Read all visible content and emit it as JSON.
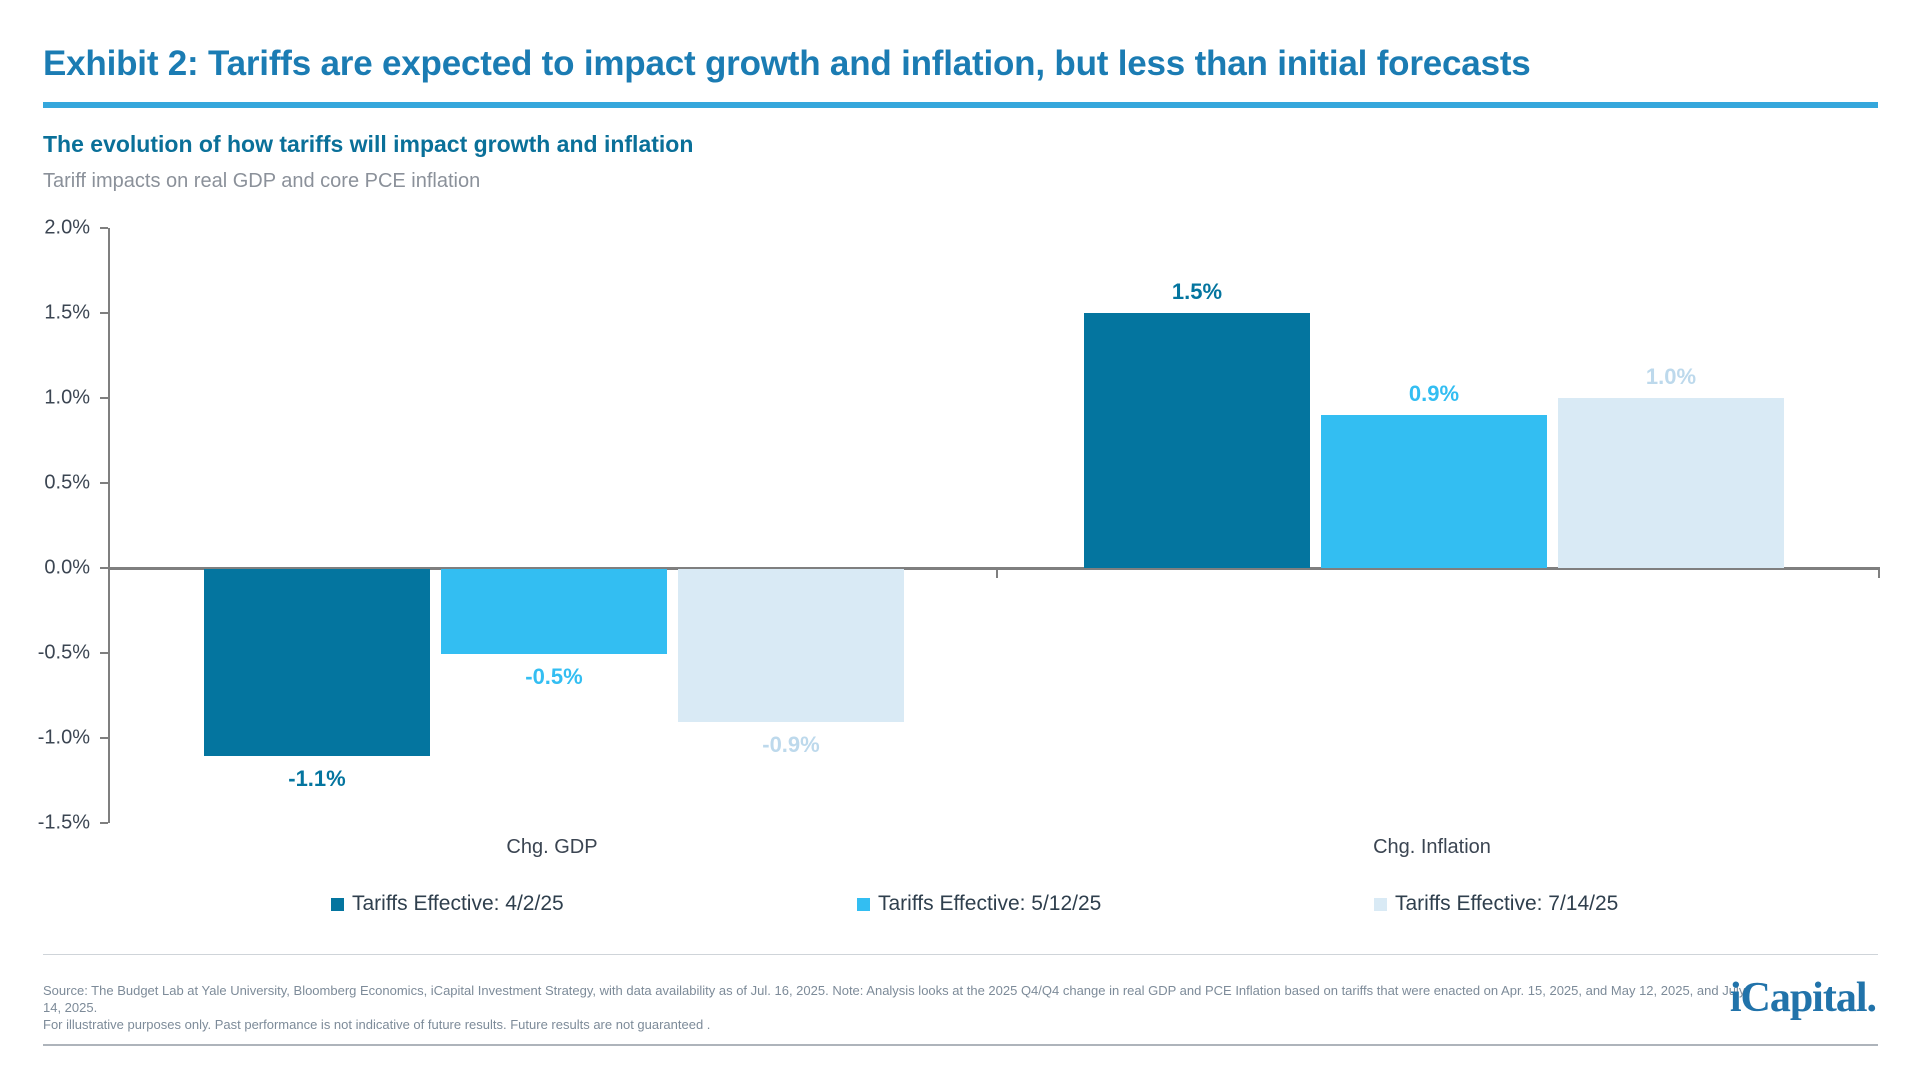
{
  "header": {
    "title": "Exhibit 2: Tariffs are expected to impact growth and inflation, but less than initial forecasts",
    "subtitle": "The evolution of how tariffs will impact growth and inflation",
    "caption": "Tariff impacts on real GDP and core PCE inflation"
  },
  "colors": {
    "title": "#1B7CB3",
    "title_rule": "#35A7DC",
    "subtitle": "#0A7099",
    "caption": "#8B919A",
    "axis": "#7F7F7F",
    "axis_labels": "#3B4552",
    "legend_text": "#2F3F4D",
    "footer_text": "#7D8B99",
    "logo": "#2173AA"
  },
  "chart_data": {
    "type": "bar",
    "title": "The evolution of how tariffs will impact growth and inflation",
    "subtitle": "Tariff impacts on real GDP and core PCE inflation",
    "categories": [
      "Chg. GDP",
      "Chg. Inflation"
    ],
    "series": [
      {
        "name": "Tariffs Effective: 4/2/25",
        "color": "#04759F",
        "label_color": "#04759F",
        "values": [
          -1.1,
          1.5
        ],
        "data_labels": [
          "-1.1%",
          "1.5%"
        ]
      },
      {
        "name": "Tariffs Effective: 5/12/25",
        "color": "#33BEF2",
        "label_color": "#33BEF2",
        "values": [
          -0.5,
          0.9
        ],
        "data_labels": [
          "-0.5%",
          "0.9%"
        ]
      },
      {
        "name": "Tariffs Effective: 7/14/25",
        "color": "#D9EAF5",
        "label_color": "#BDD9EC",
        "values": [
          -0.9,
          1.0
        ],
        "data_labels": [
          "-0.9%",
          "1.0%"
        ]
      }
    ],
    "ylim": [
      -1.5,
      2.0
    ],
    "yticks": [
      {
        "label": "2.0%",
        "value": 2.0
      },
      {
        "label": "1.5%",
        "value": 1.5
      },
      {
        "label": "1.0%",
        "value": 1.0
      },
      {
        "label": "0.5%",
        "value": 0.5
      },
      {
        "label": "0.0%",
        "value": 0.0
      },
      {
        "label": "-0.5%",
        "value": -0.5
      },
      {
        "label": "-1.0%",
        "value": -1.0
      },
      {
        "label": "-1.5%",
        "value": -1.5
      }
    ],
    "grid": false,
    "legend_position": "bottom"
  },
  "footer": {
    "source_line1": "Source: The Budget Lab at Yale University, Bloomberg Economics, iCapital Investment Strategy, with data availability as of Jul. 16, 2025. Note: Analysis looks at the 2025 Q4/Q4 change in real GDP and PCE Inflation based on tariffs that were enacted on Apr. 15, 2025, and May 12, 2025, and July 14, 2025.",
    "source_line2": "For illustrative purposes only. Past performance is not indicative of future results. Future results are not guaranteed .",
    "logo_text": "iCapital",
    "logo_dot": "."
  }
}
